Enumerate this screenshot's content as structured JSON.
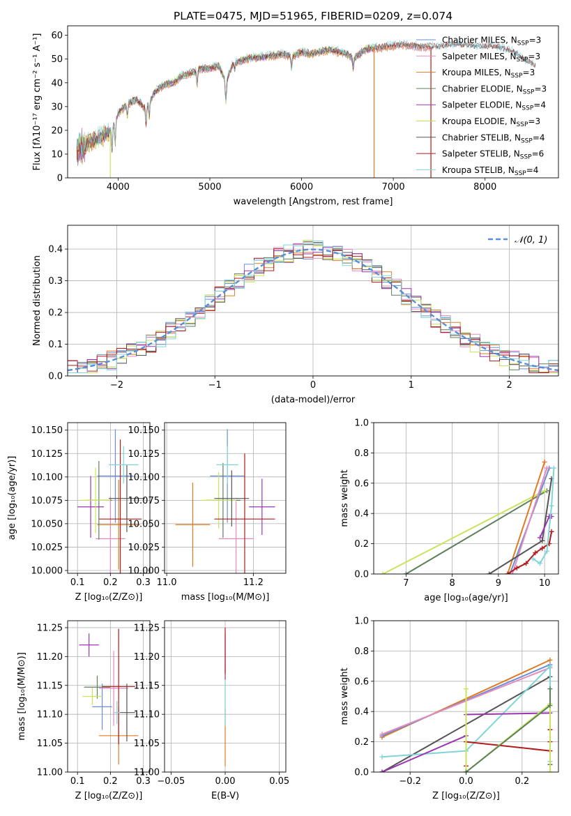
{
  "colors": {
    "chabrier_miles": "#6a8fd1",
    "salpeter_miles": "#e48ac0",
    "kroupa_miles": "#e07b23",
    "chabrier_elodie": "#5c7f5c",
    "salpeter_elodie": "#9b35b0",
    "kroupa_elodie": "#c8e45a",
    "chabrier_stelib": "#555555",
    "salpeter_stelib": "#b41a1a",
    "kroupa_stelib": "#80d4d8",
    "normal_curve": "#5a8fd8",
    "grid": "#b0b0b0"
  },
  "chart_data": [
    {
      "id": "spectrum",
      "type": "line",
      "title": "PLATE=0475, MJD=51965, FIBERID=0209, z=0.074",
      "xlabel": "wavelength [Angstrom, rest frame]",
      "ylabel": "Flux [fλ10⁻¹⁷ erg cm⁻² s⁻¹ A⁻¹]",
      "xlim": [
        3450,
        8800
      ],
      "ylim": [
        0,
        64
      ],
      "xticks": [
        4000,
        5000,
        6000,
        7000,
        8000
      ],
      "yticks": [
        0,
        10,
        20,
        30,
        40,
        50,
        60
      ],
      "grid": false,
      "legend_position": "upper-right",
      "legend": [
        {
          "name": "Chabrier MILES, N",
          "sub": "SSP",
          "suffix": "=3",
          "color_key": "chabrier_miles"
        },
        {
          "name": "Salpeter MILES, N",
          "sub": "SSP",
          "suffix": "=3",
          "color_key": "salpeter_miles"
        },
        {
          "name": "Kroupa MILES, N",
          "sub": "SSP",
          "suffix": "=3",
          "color_key": "kroupa_miles"
        },
        {
          "name": "Chabrier ELODIE, N",
          "sub": "SSP",
          "suffix": "=3",
          "color_key": "chabrier_elodie"
        },
        {
          "name": "Salpeter ELODIE, N",
          "sub": "SSP",
          "suffix": "=4",
          "color_key": "salpeter_elodie"
        },
        {
          "name": "Kroupa ELODIE, N",
          "sub": "SSP",
          "suffix": "=3",
          "color_key": "kroupa_elodie"
        },
        {
          "name": "Chabrier STELIB, N",
          "sub": "SSP",
          "suffix": "=4",
          "color_key": "chabrier_stelib"
        },
        {
          "name": "Salpeter STELIB, N",
          "sub": "SSP",
          "suffix": "=6",
          "color_key": "salpeter_stelib"
        },
        {
          "name": "Kroupa STELIB, N",
          "sub": "SSP",
          "suffix": "=4",
          "color_key": "kroupa_stelib"
        }
      ],
      "continuum_knots": [
        [
          3550,
          12
        ],
        [
          3700,
          15
        ],
        [
          3800,
          17
        ],
        [
          3900,
          19
        ],
        [
          3950,
          22
        ],
        [
          4000,
          27
        ],
        [
          4100,
          31
        ],
        [
          4200,
          33
        ],
        [
          4300,
          29
        ],
        [
          4400,
          36
        ],
        [
          4500,
          39
        ],
        [
          4600,
          40
        ],
        [
          4700,
          43
        ],
        [
          4800,
          44
        ],
        [
          4900,
          46
        ],
        [
          5000,
          46
        ],
        [
          5100,
          47
        ],
        [
          5175,
          40
        ],
        [
          5250,
          48
        ],
        [
          5400,
          50
        ],
        [
          5600,
          51
        ],
        [
          5800,
          52
        ],
        [
          5900,
          51
        ],
        [
          6000,
          53
        ],
        [
          6100,
          52
        ],
        [
          6300,
          54
        ],
        [
          6500,
          52
        ],
        [
          6563,
          50
        ],
        [
          6700,
          54
        ],
        [
          6900,
          55
        ],
        [
          7100,
          56
        ],
        [
          7300,
          55
        ],
        [
          7500,
          55
        ],
        [
          7700,
          56
        ],
        [
          7900,
          55
        ],
        [
          8100,
          55
        ],
        [
          8300,
          53
        ],
        [
          8450,
          49
        ],
        [
          8550,
          47
        ]
      ],
      "absorption_features": [
        [
          3934,
          10
        ],
        [
          3969,
          9
        ],
        [
          4101,
          5
        ],
        [
          4304,
          7
        ],
        [
          4340,
          6
        ],
        [
          4861,
          6
        ],
        [
          5175,
          8
        ],
        [
          5270,
          3
        ],
        [
          5890,
          5
        ],
        [
          6563,
          4
        ]
      ],
      "spikes_to_zero": [
        {
          "x": 3915,
          "color_key": "kroupa_elodie"
        },
        {
          "x": 6790,
          "color_key": "kroupa_miles"
        },
        {
          "x": 7410,
          "color_key": "salpeter_stelib"
        }
      ],
      "coverage_end": {
        "miles": 7400,
        "elodie": 6790,
        "stelib": 8550
      }
    },
    {
      "id": "residuals",
      "type": "histogram",
      "xlabel": "(data-model)/error",
      "ylabel": "Normed distribution",
      "xlim": [
        -2.5,
        2.5
      ],
      "ylim": [
        0,
        0.475
      ],
      "xticks": [
        -2,
        -1,
        0,
        1,
        2
      ],
      "yticks": [
        0.0,
        0.1,
        0.2,
        0.3,
        0.4
      ],
      "grid": true,
      "bin_width": 0.1,
      "legend_position": "upper-right",
      "curve_label": "𝒩(0, 1)"
    },
    {
      "id": "age_vs_Z",
      "type": "errorbar",
      "xlabel": "Z [log₁₀(Z/Z⊙)]",
      "ylabel": "age  [log₁₀(age/yr)]",
      "xlim": [
        0.07,
        0.32
      ],
      "ylim": [
        9.997,
        10.158
      ],
      "xticks": [
        0.1,
        0.2,
        0.3
      ],
      "yticks": [
        10.0,
        10.025,
        10.05,
        10.075,
        10.1,
        10.125,
        10.15
      ],
      "grid": true,
      "points": [
        {
          "color_key": "chabrier_miles",
          "x": 0.215,
          "y": 10.101,
          "xerr": 0.055,
          "yerr": 0.05
        },
        {
          "color_key": "salpeter_miles",
          "x": 0.2,
          "y": 10.034,
          "xerr": 0.045,
          "yerr": 0.045
        },
        {
          "color_key": "kroupa_miles",
          "x": 0.225,
          "y": 10.049,
          "xerr": 0.065,
          "yerr": 0.048
        },
        {
          "color_key": "chabrier_elodie",
          "x": 0.165,
          "y": 10.075,
          "xerr": 0.04,
          "yerr": 0.042
        },
        {
          "color_key": "salpeter_elodie",
          "x": 0.14,
          "y": 10.068,
          "xerr": 0.04,
          "yerr": 0.033
        },
        {
          "color_key": "kroupa_elodie",
          "x": 0.155,
          "y": 10.075,
          "xerr": 0.045,
          "yerr": 0.035
        },
        {
          "color_key": "chabrier_stelib",
          "x": 0.25,
          "y": 10.077,
          "xerr": 0.055,
          "yerr": 0.036
        },
        {
          "color_key": "salpeter_stelib",
          "x": 0.23,
          "y": 10.055,
          "xerr": 0.065,
          "yerr": 0.085
        },
        {
          "color_key": "kroupa_stelib",
          "x": 0.24,
          "y": 10.113,
          "xerr": 0.045,
          "yerr": 0.02
        }
      ]
    },
    {
      "id": "age_vs_mass",
      "type": "errorbar",
      "xlabel": "mass [log₁₀(M/M⊙)]",
      "ylabel": "",
      "xlim": [
        10.995,
        11.275
      ],
      "ylim": [
        9.997,
        10.158
      ],
      "xticks": [
        11.0,
        11.2
      ],
      "yticks": [
        10.0,
        10.025,
        10.05,
        10.075,
        10.1,
        10.125,
        10.15
      ],
      "grid": true,
      "points": [
        {
          "color_key": "chabrier_miles",
          "x": 11.14,
          "y": 10.101,
          "xerr": 0.04,
          "yerr": 0.05
        },
        {
          "color_key": "salpeter_miles",
          "x": 11.16,
          "y": 10.034,
          "xerr": 0.04,
          "yerr": 0.04
        },
        {
          "color_key": "kroupa_miles",
          "x": 11.06,
          "y": 10.049,
          "xerr": 0.04,
          "yerr": 0.045
        },
        {
          "color_key": "chabrier_elodie",
          "x": 11.13,
          "y": 10.075,
          "xerr": 0.04,
          "yerr": 0.04
        },
        {
          "color_key": "salpeter_elodie",
          "x": 11.22,
          "y": 10.068,
          "xerr": 0.03,
          "yerr": 0.03
        },
        {
          "color_key": "kroupa_elodie",
          "x": 11.12,
          "y": 10.075,
          "xerr": 0.04,
          "yerr": 0.03
        },
        {
          "color_key": "chabrier_stelib",
          "x": 11.15,
          "y": 10.077,
          "xerr": 0.04,
          "yerr": 0.03
        },
        {
          "color_key": "salpeter_stelib",
          "x": 11.18,
          "y": 10.055,
          "xerr": 0.07,
          "yerr": 0.07
        },
        {
          "color_key": "kroupa_stelib",
          "x": 11.14,
          "y": 10.113,
          "xerr": 0.025,
          "yerr": 0.02
        }
      ]
    },
    {
      "id": "massweight_vs_age",
      "type": "line",
      "xlabel": "age  [log₁₀(age/yr)]",
      "ylabel": "mass weight",
      "xlim": [
        6.3,
        10.3
      ],
      "ylim": [
        0,
        1.0
      ],
      "xticks": [
        7,
        8,
        9,
        10
      ],
      "yticks": [
        0.0,
        0.2,
        0.4,
        0.6,
        0.8,
        1.0
      ],
      "grid": true,
      "series": [
        {
          "color_key": "chabrier_elodie",
          "x": [
            7.0,
            10.05
          ],
          "y": [
            0.0,
            0.55
          ]
        },
        {
          "color_key": "kroupa_elodie",
          "x": [
            6.5,
            10.0
          ],
          "y": [
            0.0,
            0.55
          ]
        },
        {
          "color_key": "kroupa_miles",
          "x": [
            9.2,
            10.0
          ],
          "y": [
            0.0,
            0.74
          ]
        },
        {
          "color_key": "chabrier_miles",
          "x": [
            9.25,
            10.1
          ],
          "y": [
            0.0,
            0.7
          ]
        },
        {
          "color_key": "salpeter_miles",
          "x": [
            9.3,
            10.05
          ],
          "y": [
            0.0,
            0.7
          ]
        },
        {
          "color_key": "chabrier_stelib",
          "x": [
            8.8,
            9.95,
            10.15
          ],
          "y": [
            0.0,
            0.22,
            0.63
          ]
        },
        {
          "color_key": "salpeter_stelib",
          "x": [
            9.2,
            9.4,
            9.6,
            9.8,
            9.95,
            10.1,
            10.15
          ],
          "y": [
            0.0,
            0.04,
            0.07,
            0.14,
            0.17,
            0.2,
            0.28
          ]
        },
        {
          "color_key": "salpeter_elodie",
          "x": [
            9.9,
            10.1,
            10.15
          ],
          "y": [
            0.24,
            0.38,
            0.38
          ]
        },
        {
          "color_key": "kroupa_stelib",
          "x": [
            9.75,
            9.9,
            10.05,
            10.15,
            10.2
          ],
          "y": [
            0.1,
            0.07,
            0.15,
            0.45,
            0.7
          ]
        }
      ]
    },
    {
      "id": "mass_vs_Z",
      "type": "errorbar",
      "xlabel": "Z [log₁₀(Z/Z⊙)]",
      "ylabel": "mass [log₁₀(M/M⊙)]",
      "xlim": [
        0.07,
        0.32
      ],
      "ylim": [
        11.0,
        11.262
      ],
      "xticks": [
        0.1,
        0.2,
        0.3
      ],
      "yticks": [
        11.0,
        11.05,
        11.1,
        11.15,
        11.2,
        11.25
      ],
      "grid": true,
      "points": [
        {
          "color_key": "chabrier_miles",
          "x": 0.175,
          "y": 11.113,
          "xerr": 0.03,
          "yerr": 0.04
        },
        {
          "color_key": "salpeter_miles",
          "x": 0.21,
          "y": 11.145,
          "xerr": 0.045,
          "yerr": 0.065
        },
        {
          "color_key": "kroupa_miles",
          "x": 0.225,
          "y": 11.063,
          "xerr": 0.06,
          "yerr": 0.05
        },
        {
          "color_key": "chabrier_elodie",
          "x": 0.16,
          "y": 11.147,
          "xerr": 0.04,
          "yerr": 0.02
        },
        {
          "color_key": "salpeter_elodie",
          "x": 0.135,
          "y": 11.22,
          "xerr": 0.03,
          "yerr": 0.02
        },
        {
          "color_key": "kroupa_elodie",
          "x": 0.145,
          "y": 11.131,
          "xerr": 0.03,
          "yerr": 0.015
        },
        {
          "color_key": "chabrier_stelib",
          "x": 0.25,
          "y": 11.103,
          "xerr": 0.025,
          "yerr": 0.05
        },
        {
          "color_key": "salpeter_stelib",
          "x": 0.225,
          "y": 11.148,
          "xerr": 0.05,
          "yerr": 0.1
        },
        {
          "color_key": "kroupa_stelib",
          "x": 0.22,
          "y": 11.103,
          "xerr": 0.01,
          "yerr": 0.02
        }
      ]
    },
    {
      "id": "mass_vs_ebv",
      "type": "errorbar",
      "xlabel": "E(B-V)",
      "ylabel": "",
      "xlim": [
        -0.056,
        0.056
      ],
      "ylim": [
        11.0,
        11.262
      ],
      "xticks": [
        -0.05,
        0.0,
        0.05
      ],
      "yticks": [
        11.0,
        11.05,
        11.1,
        11.15,
        11.2,
        11.25
      ],
      "grid": true,
      "points": [
        {
          "color_key": "kroupa_miles",
          "x": 0.0,
          "y": 11.06,
          "xerr": 0.0,
          "yerr": 0.05
        },
        {
          "color_key": "kroupa_elodie",
          "x": 0.0,
          "y": 11.13,
          "xerr": 0.0,
          "yerr": 0.05
        },
        {
          "color_key": "kroupa_stelib",
          "x": 0.0,
          "y": 11.12,
          "xerr": 0.0,
          "yerr": 0.04
        },
        {
          "color_key": "salpeter_elodie",
          "x": 0.0,
          "y": 11.2,
          "xerr": 0.0,
          "yerr": 0.04
        },
        {
          "color_key": "salpeter_stelib",
          "x": 0.0,
          "y": 11.21,
          "xerr": 0.0,
          "yerr": 0.04
        }
      ]
    },
    {
      "id": "massweight_vs_Z",
      "type": "line",
      "xlabel": "Z [log₁₀(Z/Z⊙)]",
      "ylabel": "mass weight",
      "xlim": [
        -0.33,
        0.33
      ],
      "ylim": [
        0,
        1.0
      ],
      "xticks": [
        -0.2,
        0.0,
        0.2
      ],
      "yticks": [
        0.0,
        0.2,
        0.4,
        0.6,
        0.8,
        1.0
      ],
      "grid": true,
      "series": [
        {
          "color_key": "kroupa_miles",
          "x": [
            -0.3,
            0.3
          ],
          "y": [
            0.23,
            0.74
          ]
        },
        {
          "color_key": "chabrier_miles",
          "x": [
            -0.3,
            0.3
          ],
          "y": [
            0.24,
            0.71
          ]
        },
        {
          "color_key": "salpeter_miles",
          "x": [
            -0.3,
            0.3
          ],
          "y": [
            0.25,
            0.69
          ]
        },
        {
          "color_key": "chabrier_stelib",
          "x": [
            -0.3,
            0.3,
            0.3
          ],
          "y": [
            0.0,
            0.63,
            0.05
          ]
        },
        {
          "color_key": "kroupa_stelib",
          "x": [
            -0.3,
            0.0,
            0.3,
            0.3
          ],
          "y": [
            0.1,
            0.14,
            0.7,
            0.07
          ]
        },
        {
          "color_key": "salpeter_elodie",
          "x": [
            -0.3,
            0.0,
            0.0,
            0.3
          ],
          "y": [
            0.0,
            0.24,
            0.38,
            0.39
          ]
        },
        {
          "color_key": "salpeter_stelib",
          "x": [
            0.0,
            0.0,
            0.3,
            0.3,
            0.3
          ],
          "y": [
            0.04,
            0.2,
            0.14,
            0.28,
            0.2
          ]
        },
        {
          "color_key": "kroupa_elodie",
          "x": [
            0.0,
            0.0,
            0.3,
            0.3
          ],
          "y": [
            0.55,
            0.0,
            0.45,
            0.0
          ]
        },
        {
          "color_key": "chabrier_elodie",
          "x": [
            0.0,
            0.3,
            0.3
          ],
          "y": [
            0.0,
            0.44,
            0.55
          ]
        }
      ]
    }
  ]
}
